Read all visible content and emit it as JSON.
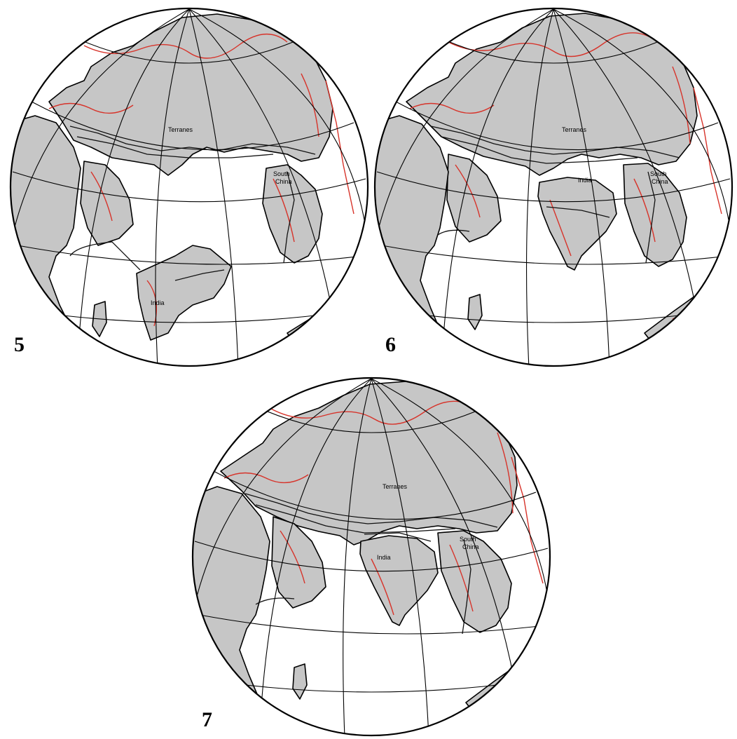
{
  "panels": [
    {
      "number": "5",
      "labels": {
        "terranes": "Terranes",
        "south": "South",
        "china": "China",
        "india": "India"
      }
    },
    {
      "number": "6",
      "labels": {
        "terranes": "Terranes",
        "south": "South",
        "china": "China",
        "india": "India"
      }
    },
    {
      "number": "7",
      "labels": {
        "terranes": "Terranes",
        "south": "South",
        "china": "China",
        "india": "India"
      }
    }
  ],
  "colors": {
    "land": "#c6c6c6",
    "ocean": "#ffffff",
    "coastline": "#000000",
    "topography": "#d7332a"
  }
}
